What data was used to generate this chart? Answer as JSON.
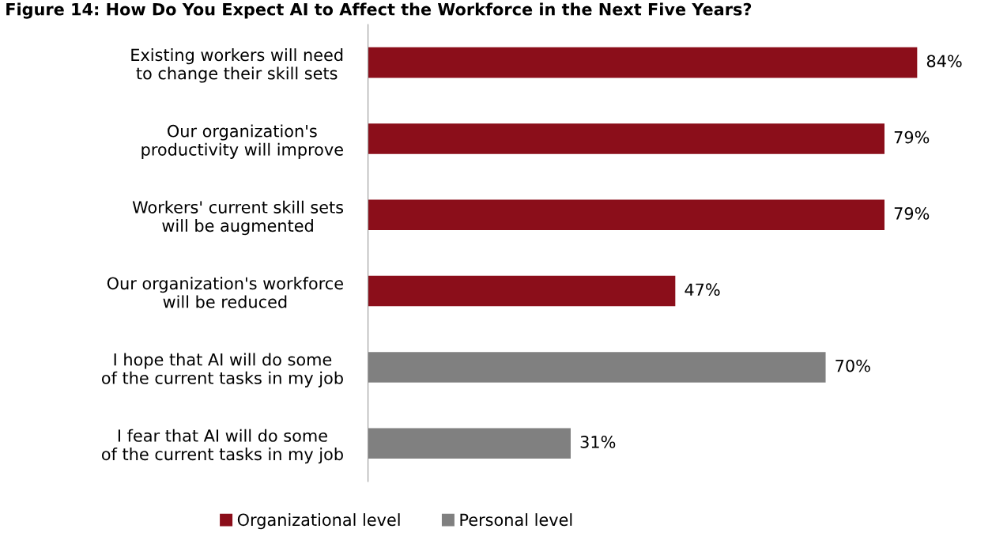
{
  "chart_data": {
    "type": "bar",
    "orientation": "horizontal",
    "title": "Figure 14: How Do You Expect AI to Affect the Workforce in the Next Five Years?",
    "categories": [
      "Existing workers will need\nto change their skill sets",
      "Our organization's\nproductivity will improve",
      "Workers' current skill sets\nwill be augmented",
      "Our organization's workforce\nwill be reduced",
      "I hope that AI will do some\nof the current tasks in my job",
      "I fear that AI will do some\nof the current tasks in my job"
    ],
    "series": [
      {
        "name": "Organizational level",
        "color": "#8b0e1a",
        "values": [
          84,
          79,
          79,
          47,
          null,
          null
        ],
        "value_labels": [
          "84%",
          "79%",
          "79%",
          "47%",
          null,
          null
        ]
      },
      {
        "name": "Personal level",
        "color": "#808080",
        "values": [
          null,
          null,
          null,
          null,
          70,
          31
        ],
        "value_labels": [
          null,
          null,
          null,
          null,
          "70%",
          "31%"
        ]
      }
    ],
    "legend": "bottom",
    "grid": false
  }
}
